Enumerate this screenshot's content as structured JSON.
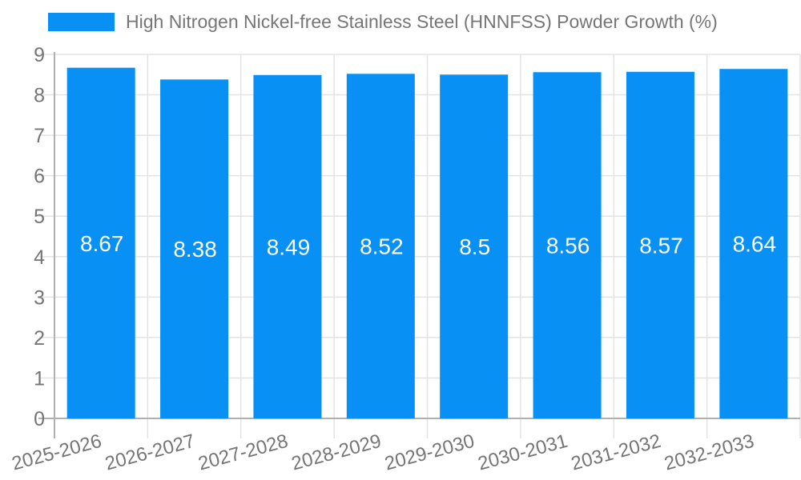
{
  "legend": {
    "label": "High Nitrogen Nickel-free Stainless Steel (HNNFSS) Powder Growth (%)"
  },
  "chart_data": {
    "type": "bar",
    "title": "High Nitrogen Nickel-free Stainless Steel (HNNFSS) Powder Growth (%)",
    "categories": [
      "2025-2026",
      "2026-2027",
      "2027-2028",
      "2028-2029",
      "2029-2030",
      "2030-2031",
      "2031-2032",
      "2032-2033"
    ],
    "series": [
      {
        "name": "High Nitrogen Nickel-free Stainless Steel (HNNFSS) Powder Growth (%)",
        "values": [
          8.67,
          8.38,
          8.49,
          8.52,
          8.5,
          8.56,
          8.57,
          8.64
        ]
      }
    ],
    "value_labels": [
      "8.67",
      "8.38",
      "8.49",
      "8.52",
      "8.5",
      "8.56",
      "8.57",
      "8.64"
    ],
    "xlabel": "",
    "ylabel": "",
    "ylim": [
      0,
      9
    ],
    "yticks": [
      0,
      1,
      2,
      3,
      4,
      5,
      6,
      7,
      8,
      9
    ],
    "grid": true,
    "legend_position": "top",
    "x_tick_rotation_deg": -15,
    "colors": {
      "bar": "#0990f5",
      "bar_label": "#ffffff",
      "gridline": "#e3e3e3",
      "axis_line": "#b0b0b0",
      "axis_text": "#757575",
      "legend_text": "#757575"
    }
  }
}
